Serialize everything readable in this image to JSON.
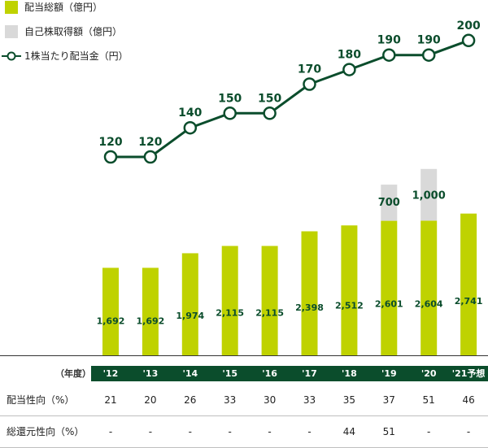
{
  "legend": {
    "dividend_total": "配当総額（億円）",
    "buyback_total": "自己株取得額（億円）",
    "dps": "1株当たり配当金（円）"
  },
  "colors": {
    "dividend_bar": "#bfd200",
    "buyback_bar": "#d9d9d9",
    "line": "#0b4d2c",
    "bar_label": "#0b4d2c",
    "axis_band": "#0b4d2c"
  },
  "chart_data": {
    "type": "bar",
    "categories": [
      "'12",
      "'13",
      "'14",
      "'15",
      "'16",
      "'17",
      "'18",
      "'19",
      "'20",
      "'21予想"
    ],
    "series": [
      {
        "name": "配当総額（億円）",
        "kind": "bar-stacked",
        "values": [
          1692,
          1692,
          1974,
          2115,
          2115,
          2398,
          2512,
          2601,
          2604,
          2741
        ],
        "labels": [
          "1,692",
          "1,692",
          "1,974",
          "2,115",
          "2,115",
          "2,398",
          "2,512",
          "2,601",
          "2,604",
          "2,741"
        ]
      },
      {
        "name": "自己株取得額（億円）",
        "kind": "bar-stacked",
        "values": [
          0,
          0,
          0,
          0,
          0,
          0,
          0,
          700,
          1000,
          0
        ],
        "labels": [
          "",
          "",
          "",
          "",
          "",
          "",
          "",
          "700",
          "1,000",
          ""
        ]
      },
      {
        "name": "1株当たり配当金（円）",
        "kind": "line",
        "values": [
          120,
          120,
          140,
          150,
          150,
          170,
          180,
          190,
          190,
          200
        ],
        "labels": [
          "120",
          "120",
          "140",
          "150",
          "150",
          "170",
          "180",
          "190",
          "190",
          "200"
        ]
      }
    ],
    "x_axis_header": "（年度）"
  },
  "table": {
    "rows": [
      {
        "label": "配当性向（%）",
        "values": [
          "21",
          "20",
          "26",
          "33",
          "30",
          "33",
          "35",
          "37",
          "51",
          "46"
        ]
      },
      {
        "label": "総還元性向（%）",
        "values": [
          "-",
          "-",
          "-",
          "-",
          "-",
          "-",
          "44",
          "51",
          "-",
          "-"
        ]
      }
    ]
  }
}
